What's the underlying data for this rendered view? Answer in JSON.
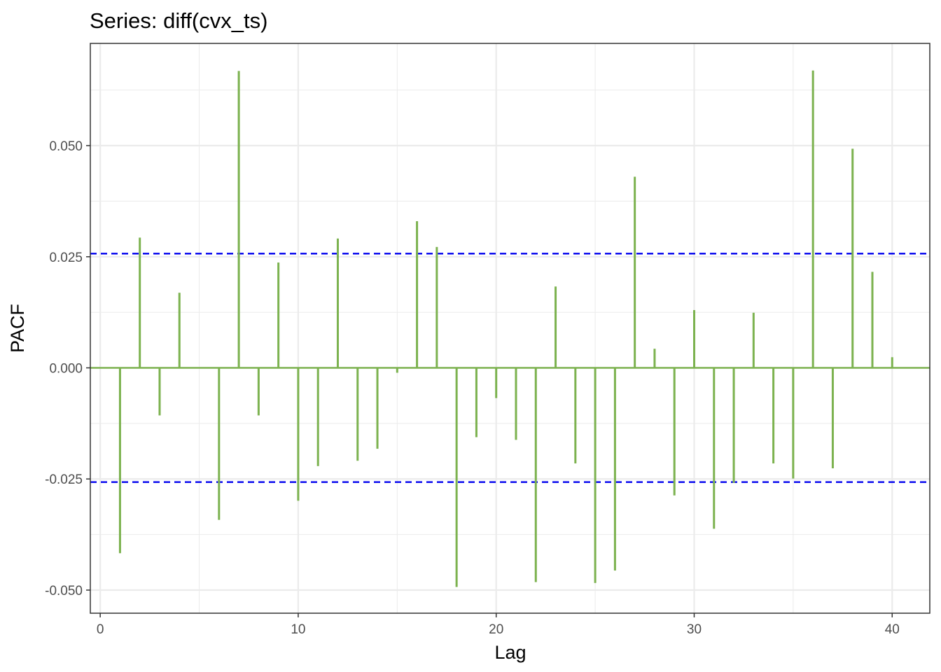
{
  "chart_data": {
    "type": "bar",
    "title": "Series: diff(cvx_ts)",
    "xlabel": "Lag",
    "ylabel": "PACF",
    "xlim": [
      -0.5,
      41.9
    ],
    "ylim": [
      -0.0552,
      0.073
    ],
    "x_ticks": [
      0,
      10,
      20,
      30,
      40
    ],
    "x_tick_labels": [
      "0",
      "10",
      "20",
      "30",
      "40"
    ],
    "y_ticks": [
      -0.05,
      -0.025,
      0.0,
      0.025,
      0.05
    ],
    "y_tick_labels": [
      "-0.050",
      "-0.025",
      "0.000",
      "0.025",
      "0.050"
    ],
    "grid": true,
    "legend": "none",
    "bar_color": "#7cb24f",
    "ci_color": "#0000ee",
    "confidence_bounds": [
      0.0257,
      -0.0257
    ],
    "lags": [
      1,
      2,
      3,
      4,
      5,
      6,
      7,
      8,
      9,
      10,
      11,
      12,
      13,
      14,
      15,
      16,
      17,
      18,
      19,
      20,
      21,
      22,
      23,
      24,
      25,
      26,
      27,
      28,
      29,
      30,
      31,
      32,
      33,
      34,
      35,
      36,
      37,
      38,
      39,
      40
    ],
    "values": [
      -0.0417,
      0.0293,
      -0.0107,
      0.0169,
      0.0,
      -0.0342,
      0.0668,
      -0.0107,
      0.0237,
      -0.0299,
      -0.0221,
      0.0291,
      -0.0209,
      -0.0182,
      -0.0011,
      0.033,
      0.0272,
      -0.0493,
      -0.0156,
      -0.0068,
      -0.0162,
      -0.0482,
      0.0183,
      -0.0215,
      -0.0484,
      -0.0456,
      0.043,
      0.0043,
      -0.0287,
      0.013,
      -0.0362,
      -0.0259,
      0.0124,
      -0.0215,
      -0.0249,
      0.0669,
      -0.0226,
      0.0493,
      0.0216,
      0.0024
    ]
  }
}
